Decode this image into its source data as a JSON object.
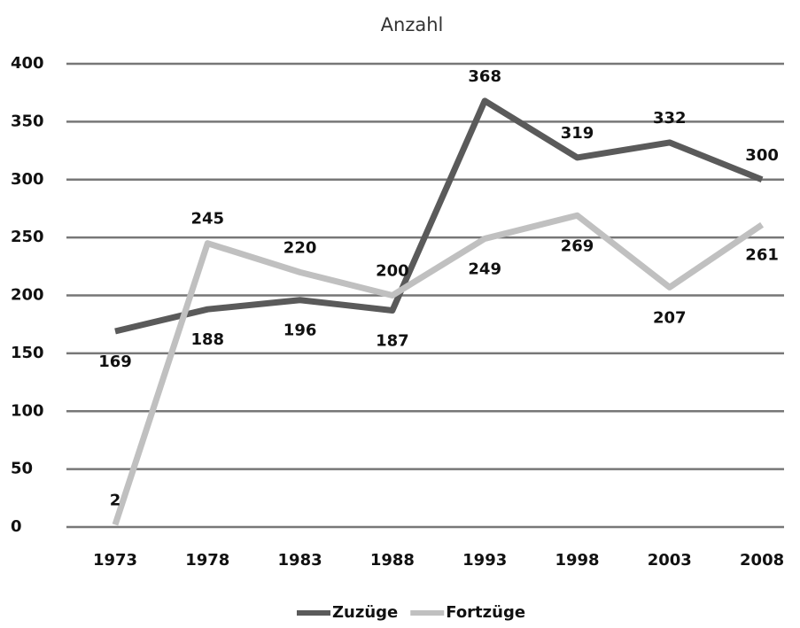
{
  "chart_data": {
    "type": "line",
    "title": "Anzahl",
    "categories": [
      "1973",
      "1978",
      "1983",
      "1988",
      "1993",
      "1998",
      "2003",
      "2008"
    ],
    "series": [
      {
        "name": "Zuzüge",
        "color": "#5a5a5a",
        "values": [
          169,
          188,
          196,
          187,
          368,
          319,
          332,
          300
        ]
      },
      {
        "name": "Fortzüge",
        "color": "#c0c0c0",
        "values": [
          2,
          245,
          220,
          200,
          249,
          269,
          207,
          261
        ]
      }
    ],
    "ylim": [
      0,
      400
    ],
    "yticks": [
      0,
      50,
      100,
      150,
      200,
      250,
      300,
      350,
      400
    ],
    "grid": true,
    "legend": "bottom"
  }
}
